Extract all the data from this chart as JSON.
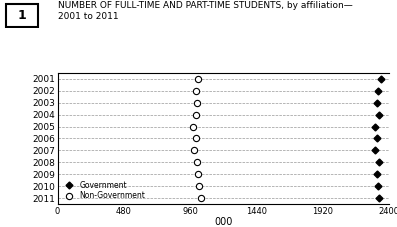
{
  "years": [
    2001,
    2002,
    2003,
    2004,
    2005,
    2006,
    2007,
    2008,
    2009,
    2010,
    2011
  ],
  "government": [
    2340,
    2320,
    2315,
    2330,
    2295,
    2310,
    2300,
    2330,
    2310,
    2320,
    2325
  ],
  "non_government": [
    1020,
    1000,
    1010,
    1005,
    980,
    1000,
    990,
    1010,
    1015,
    1025,
    1035
  ],
  "title": "NUMBER OF FULL-TIME AND PART-TIME STUDENTS, by affiliation—\n2001 to 2011",
  "xlabel": "000",
  "xlim": [
    0,
    2400
  ],
  "xticks": [
    0,
    480,
    960,
    1440,
    1920,
    2400
  ],
  "legend_gov": "Government",
  "legend_nongov": "Non-Government",
  "chart_num": "1",
  "bg_color": "#ffffff",
  "grid_color": "#999999",
  "marker_color": "#000000"
}
